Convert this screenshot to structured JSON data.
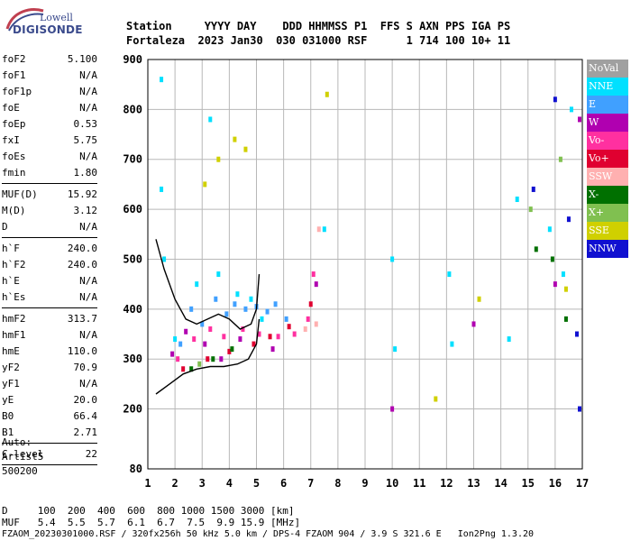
{
  "logo": {
    "line1": "Lowell",
    "line2": "DIGISONDE"
  },
  "header": {
    "row1": "Station     YYYY DAY    DDD HHMMSS P1  FFS S AXN PPS IGA PS",
    "row2": "Fortaleza  2023 Jan30  030 031000 RSF      1 714 100 10+ 11"
  },
  "params": {
    "group1": [
      {
        "k": "foF2",
        "v": "5.100"
      },
      {
        "k": "foF1",
        "v": "N/A"
      },
      {
        "k": "foF1p",
        "v": "N/A"
      },
      {
        "k": "foE",
        "v": "N/A"
      },
      {
        "k": "foEp",
        "v": "0.53"
      },
      {
        "k": "fxI",
        "v": "5.75"
      },
      {
        "k": "foEs",
        "v": "N/A"
      },
      {
        "k": "fmin",
        "v": "1.80"
      }
    ],
    "group2": [
      {
        "k": "MUF(D)",
        "v": "15.92"
      },
      {
        "k": "M(D)",
        "v": "3.12"
      },
      {
        "k": "D",
        "v": "N/A"
      }
    ],
    "group3": [
      {
        "k": "h`F",
        "v": "240.0"
      },
      {
        "k": "h`F2",
        "v": "240.0"
      },
      {
        "k": "h`E",
        "v": "N/A"
      },
      {
        "k": "h`Es",
        "v": "N/A"
      }
    ],
    "group4": [
      {
        "k": "hmF2",
        "v": "313.7"
      },
      {
        "k": "hmF1",
        "v": "N/A"
      },
      {
        "k": "hmE",
        "v": "110.0"
      },
      {
        "k": "yF2",
        "v": "70.9"
      },
      {
        "k": "yF1",
        "v": "N/A"
      },
      {
        "k": "yE",
        "v": "20.0"
      },
      {
        "k": "B0",
        "v": "66.4"
      },
      {
        "k": "B1",
        "v": "2.71"
      }
    ],
    "group5": [
      {
        "k": "C-level",
        "v": "22"
      }
    ]
  },
  "auto": {
    "line1": "Auto:",
    "line2": "Artist5",
    "line3": "500200"
  },
  "footer": {
    "d_row": "D     100  200  400  600  800 1000 1500 3000 [km]",
    "muf_row": "MUF   5.4  5.5  5.7  6.1  6.7  7.5  9.9 15.9 [MHz]",
    "file_row": "FZAOM_20230301000.RSF / 320fx256h 50 kHz 5.0 km / DPS-4 FZAOM 904 / 3.9 S 321.6 E   Ion2Png 1.3.20"
  },
  "legend": [
    {
      "label": "NoVal",
      "color": "#a0a0a0"
    },
    {
      "label": "NNE",
      "color": "#00e0ff"
    },
    {
      "label": "E",
      "color": "#40a0ff"
    },
    {
      "label": "W",
      "color": "#b000b0"
    },
    {
      "label": "Vo-",
      "color": "#ff30a0"
    },
    {
      "label": "Vo+",
      "color": "#e00030"
    },
    {
      "label": "SSW",
      "color": "#ffb0b0"
    },
    {
      "label": "X-",
      "color": "#007000"
    },
    {
      "label": "X+",
      "color": "#80c050"
    },
    {
      "label": "SSE",
      "color": "#d0d000"
    },
    {
      "label": "NNW",
      "color": "#1010d0"
    }
  ],
  "chart_data": {
    "type": "scatter",
    "title": "",
    "xlabel": "",
    "ylabel": "",
    "xlim": [
      1,
      17
    ],
    "ylim": [
      80,
      900
    ],
    "x_ticks": [
      1,
      2,
      3,
      4,
      5,
      6,
      7,
      8,
      9,
      10,
      11,
      12,
      13,
      14,
      15,
      16,
      17
    ],
    "y_ticks": [
      80,
      200,
      300,
      400,
      500,
      600,
      700,
      800,
      900
    ],
    "grid": true,
    "series": [
      {
        "name": "NNE",
        "points": [
          [
            1.5,
            860
          ],
          [
            1.5,
            640
          ],
          [
            1.6,
            500
          ],
          [
            2.0,
            340
          ],
          [
            2.8,
            450
          ],
          [
            3.3,
            780
          ],
          [
            3.6,
            470
          ],
          [
            4.3,
            430
          ],
          [
            4.8,
            420
          ],
          [
            5.2,
            380
          ],
          [
            7.5,
            560
          ],
          [
            10.0,
            500
          ],
          [
            10.1,
            320
          ],
          [
            12.1,
            470
          ],
          [
            12.2,
            330
          ],
          [
            14.3,
            340
          ],
          [
            14.6,
            620
          ],
          [
            15.8,
            560
          ],
          [
            16.3,
            470
          ],
          [
            16.6,
            800
          ]
        ]
      },
      {
        "name": "E",
        "points": [
          [
            2.2,
            330
          ],
          [
            2.6,
            400
          ],
          [
            3.0,
            370
          ],
          [
            3.5,
            420
          ],
          [
            3.9,
            390
          ],
          [
            4.2,
            410
          ],
          [
            4.6,
            400
          ],
          [
            5.0,
            405
          ],
          [
            5.4,
            395
          ],
          [
            5.7,
            410
          ],
          [
            6.1,
            380
          ]
        ]
      },
      {
        "name": "W",
        "points": [
          [
            1.9,
            310
          ],
          [
            2.4,
            355
          ],
          [
            3.1,
            330
          ],
          [
            3.7,
            300
          ],
          [
            4.4,
            340
          ],
          [
            5.6,
            320
          ],
          [
            7.2,
            450
          ],
          [
            10.0,
            200
          ],
          [
            13.0,
            370
          ],
          [
            16.0,
            450
          ],
          [
            16.9,
            780
          ]
        ]
      },
      {
        "name": "Vo-",
        "points": [
          [
            2.1,
            300
          ],
          [
            2.7,
            340
          ],
          [
            3.3,
            360
          ],
          [
            3.8,
            345
          ],
          [
            4.5,
            360
          ],
          [
            5.1,
            350
          ],
          [
            5.8,
            345
          ],
          [
            6.4,
            350
          ],
          [
            6.9,
            380
          ],
          [
            7.1,
            470
          ]
        ]
      },
      {
        "name": "Vo+",
        "points": [
          [
            2.3,
            280
          ],
          [
            3.2,
            300
          ],
          [
            4.0,
            315
          ],
          [
            4.9,
            330
          ],
          [
            5.5,
            345
          ],
          [
            6.2,
            365
          ],
          [
            7.0,
            410
          ]
        ]
      },
      {
        "name": "SSW",
        "points": [
          [
            6.8,
            360
          ],
          [
            7.2,
            370
          ],
          [
            7.3,
            560
          ]
        ]
      },
      {
        "name": "X-",
        "points": [
          [
            2.6,
            280
          ],
          [
            3.4,
            300
          ],
          [
            4.1,
            320
          ],
          [
            15.3,
            520
          ],
          [
            15.9,
            500
          ],
          [
            16.4,
            380
          ]
        ]
      },
      {
        "name": "X+",
        "points": [
          [
            2.9,
            290
          ],
          [
            15.1,
            600
          ],
          [
            16.2,
            700
          ]
        ]
      },
      {
        "name": "SSE",
        "points": [
          [
            3.1,
            650
          ],
          [
            3.6,
            700
          ],
          [
            4.2,
            740
          ],
          [
            4.6,
            720
          ],
          [
            7.6,
            830
          ],
          [
            11.6,
            220
          ],
          [
            13.2,
            420
          ],
          [
            16.4,
            440
          ]
        ]
      },
      {
        "name": "NNW",
        "points": [
          [
            15.2,
            640
          ],
          [
            16.0,
            820
          ],
          [
            16.5,
            580
          ],
          [
            16.8,
            350
          ],
          [
            16.9,
            200
          ]
        ]
      }
    ],
    "curves": [
      {
        "name": "",
        "color": "#000000",
        "points": [
          [
            1.3,
            540
          ],
          [
            1.6,
            480
          ],
          [
            2.0,
            420
          ],
          [
            2.4,
            380
          ],
          [
            2.8,
            370
          ],
          [
            3.2,
            380
          ],
          [
            3.6,
            390
          ],
          [
            4.0,
            380
          ],
          [
            4.4,
            360
          ],
          [
            4.8,
            370
          ],
          [
            5.0,
            400
          ],
          [
            5.1,
            470
          ]
        ]
      },
      {
        "name": "",
        "color": "#000000",
        "points": [
          [
            1.3,
            230
          ],
          [
            1.8,
            250
          ],
          [
            2.3,
            270
          ],
          [
            2.8,
            280
          ],
          [
            3.3,
            285
          ],
          [
            3.8,
            285
          ],
          [
            4.3,
            290
          ],
          [
            4.7,
            300
          ],
          [
            5.0,
            330
          ],
          [
            5.1,
            380
          ]
        ]
      }
    ]
  }
}
